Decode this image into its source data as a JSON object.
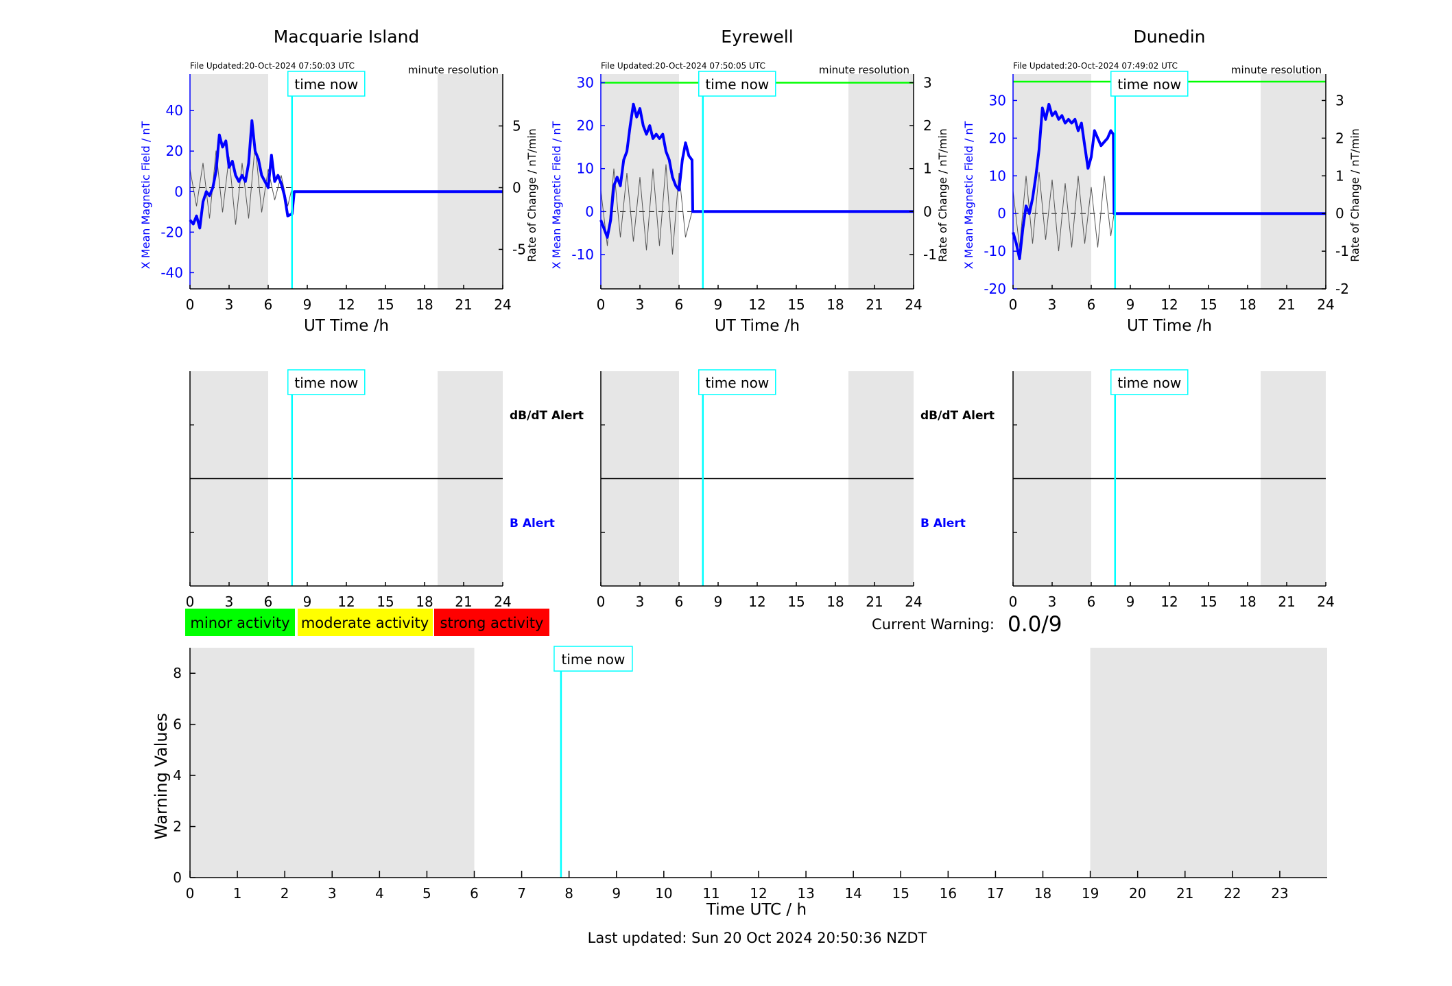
{
  "stations": [
    {
      "name": "Macquarie Island",
      "file_updated": "File Updated:20-Oct-2024 07:50:03 UTC",
      "resolution": "minute resolution",
      "ylim_left": [
        -48,
        58
      ],
      "yticks_left": [
        -40,
        -20,
        0,
        20,
        40
      ],
      "ylim_right": [
        -8.2,
        9.2
      ],
      "yticks_right": [
        -5,
        0,
        5
      ],
      "threshold": null,
      "time_now": 7.83
    },
    {
      "name": "Eyrewell",
      "file_updated": "File Updated:20-Oct-2024 07:50:05 UTC",
      "resolution": "minute resolution",
      "ylim_left": [
        -18,
        32
      ],
      "yticks_left": [
        -10,
        0,
        10,
        20,
        30
      ],
      "ylim_right": [
        -1.8,
        3.2
      ],
      "yticks_right": [
        -1,
        0,
        1,
        2,
        3
      ],
      "threshold": 30,
      "time_now": 7.83
    },
    {
      "name": "Dunedin",
      "file_updated": "File Updated:20-Oct-2024 07:49:02 UTC",
      "resolution": "minute resolution",
      "ylim_left": [
        -20,
        37
      ],
      "yticks_left": [
        -20,
        -10,
        0,
        10,
        20,
        30
      ],
      "ylim_right": [
        -2,
        3.7
      ],
      "yticks_right": [
        -2,
        -1,
        0,
        1,
        2,
        3
      ],
      "threshold": 35,
      "time_now": 7.83
    }
  ],
  "labels": {
    "ylabel_left": "X Mean Magnetic Field / nT",
    "ylabel_right": "Rate of Change / nT/min",
    "xlabel_station": "UT Time /h",
    "time_now": "time now",
    "dbdt_alert": "dB/dT Alert",
    "b_alert": "B Alert",
    "current_warning_label": "Current Warning:",
    "current_warning_value": "0.0/9",
    "warning_ylabel": "Warning Values",
    "warning_xlabel": "Time UTC / h",
    "last_updated": "Last updated: Sun 20 Oct 2024 20:50:36 NZDT"
  },
  "legend": [
    {
      "label": "minor activity",
      "color": "#00ff00"
    },
    {
      "label": "moderate activity",
      "color": "#ffff00"
    },
    {
      "label": "strong activity",
      "color": "#ff0000"
    }
  ],
  "colors": {
    "field_line": "#0000ff",
    "rate_line": "#555555",
    "time_now_line": "#00ffff",
    "threshold_line": "#00ff00",
    "night_shade": "#e6e6e6",
    "axis_blue": "#0000ff"
  },
  "chart_data": [
    {
      "type": "line",
      "title": "Macquarie Island",
      "xlabel": "UT Time /h",
      "ylabel": "X Mean Magnetic Field / nT",
      "ylabel_right": "Rate of Change / nT/min",
      "xlim": [
        0,
        24
      ],
      "xticks": [
        0,
        3,
        6,
        9,
        12,
        15,
        18,
        21,
        24
      ],
      "shaded_x": [
        [
          0,
          6
        ],
        [
          19,
          24
        ]
      ],
      "series": [
        {
          "name": "X Mean Magnetic Field / nT",
          "x": [
            0,
            0.25,
            0.5,
            0.75,
            1.0,
            1.25,
            1.5,
            1.75,
            2.0,
            2.25,
            2.5,
            2.75,
            3.0,
            3.25,
            3.5,
            3.75,
            4.0,
            4.25,
            4.5,
            4.75,
            5.0,
            5.25,
            5.5,
            5.75,
            6.0,
            6.25,
            6.5,
            6.75,
            7.0,
            7.25,
            7.5,
            7.83,
            8.0,
            24
          ],
          "y": [
            -14,
            -16,
            -12,
            -18,
            -5,
            0,
            -2,
            2,
            10,
            28,
            22,
            25,
            12,
            15,
            8,
            5,
            8,
            5,
            14,
            35,
            20,
            16,
            8,
            5,
            2,
            18,
            5,
            8,
            4,
            -2,
            -12,
            -11,
            0,
            0
          ]
        },
        {
          "name": "Rate of Change / nT/min",
          "x": [
            0,
            0.5,
            1.0,
            1.5,
            2.0,
            2.5,
            3.0,
            3.5,
            4.0,
            4.5,
            5.0,
            5.5,
            6.0,
            6.5,
            7.0,
            7.5,
            7.83
          ],
          "y": [
            1.5,
            -1.5,
            2.0,
            -2.5,
            3.0,
            -2.0,
            2.5,
            -3.0,
            2.0,
            -2.5,
            3.5,
            -2.0,
            1.5,
            -1.0,
            1.0,
            -1.5,
            0
          ]
        }
      ]
    },
    {
      "type": "line",
      "title": "Eyrewell",
      "xlabel": "UT Time /h",
      "ylabel": "X Mean Magnetic Field / nT",
      "ylabel_right": "Rate of Change / nT/min",
      "xlim": [
        0,
        24
      ],
      "xticks": [
        0,
        3,
        6,
        9,
        12,
        15,
        18,
        21,
        24
      ],
      "shaded_x": [
        [
          0,
          6
        ],
        [
          19,
          24
        ]
      ],
      "series": [
        {
          "name": "X Mean Magnetic Field / nT",
          "x": [
            0,
            0.25,
            0.5,
            0.75,
            1.0,
            1.25,
            1.5,
            1.75,
            2.0,
            2.25,
            2.5,
            2.75,
            3.0,
            3.25,
            3.5,
            3.75,
            4.0,
            4.25,
            4.5,
            4.75,
            5.0,
            5.25,
            5.5,
            5.75,
            6.0,
            6.25,
            6.5,
            6.75,
            7.0,
            7.05,
            24
          ],
          "y": [
            -2,
            -4,
            -6,
            -2,
            6,
            8,
            6,
            12,
            14,
            20,
            25,
            22,
            24,
            20,
            18,
            20,
            17,
            18,
            17,
            18,
            14,
            12,
            8,
            6,
            5,
            12,
            16,
            13,
            12,
            0,
            0
          ]
        },
        {
          "name": "Rate of Change / nT/min",
          "x": [
            0,
            0.5,
            1.0,
            1.5,
            2.0,
            2.5,
            3.0,
            3.5,
            4.0,
            4.5,
            5.0,
            5.5,
            6.0,
            6.5,
            7.0
          ],
          "y": [
            0.5,
            -0.8,
            1.0,
            -0.6,
            0.9,
            -0.7,
            0.8,
            -0.9,
            1.0,
            -0.8,
            1.1,
            -1.0,
            0.9,
            -0.6,
            0
          ]
        }
      ]
    },
    {
      "type": "line",
      "title": "Dunedin",
      "xlabel": "UT Time /h",
      "ylabel": "X Mean Magnetic Field / nT",
      "ylabel_right": "Rate of Change / nT/min",
      "xlim": [
        0,
        24
      ],
      "xticks": [
        0,
        3,
        6,
        9,
        12,
        15,
        18,
        21,
        24
      ],
      "shaded_x": [
        [
          0,
          6
        ],
        [
          19,
          24
        ]
      ],
      "series": [
        {
          "name": "X Mean Magnetic Field / nT",
          "x": [
            0,
            0.25,
            0.5,
            0.75,
            1.0,
            1.25,
            1.5,
            1.75,
            2.0,
            2.25,
            2.5,
            2.75,
            3.0,
            3.25,
            3.5,
            3.75,
            4.0,
            4.25,
            4.5,
            4.75,
            5.0,
            5.25,
            5.5,
            5.75,
            6.0,
            6.25,
            6.5,
            6.75,
            7.0,
            7.25,
            7.5,
            7.7,
            7.75,
            24
          ],
          "y": [
            -5,
            -8,
            -12,
            -4,
            2,
            0,
            4,
            10,
            17,
            28,
            25,
            29,
            26,
            27,
            25,
            26,
            24,
            25,
            24,
            25,
            22,
            24,
            18,
            12,
            15,
            22,
            20,
            18,
            19,
            20,
            22,
            21,
            0,
            0
          ]
        },
        {
          "name": "Rate of Change / nT/min",
          "x": [
            0,
            0.5,
            1.0,
            1.5,
            2.0,
            2.5,
            3.0,
            3.5,
            4.0,
            4.5,
            5.0,
            5.5,
            6.0,
            6.5,
            7.0,
            7.5,
            7.75
          ],
          "y": [
            0.6,
            -0.9,
            1.0,
            -0.8,
            1.1,
            -0.7,
            0.9,
            -1.0,
            0.8,
            -0.9,
            1.0,
            -0.8,
            0.7,
            -0.9,
            1.0,
            -0.6,
            0
          ]
        }
      ]
    },
    {
      "type": "line",
      "title": "",
      "xlabel": "Time UTC / h",
      "ylabel": "Warning Values",
      "xlim": [
        0,
        24
      ],
      "ylim": [
        0,
        9
      ],
      "xticks": [
        0,
        1,
        2,
        3,
        4,
        5,
        6,
        7,
        8,
        9,
        10,
        11,
        12,
        13,
        14,
        15,
        16,
        17,
        18,
        19,
        20,
        21,
        22,
        23
      ],
      "yticks": [
        0,
        2,
        4,
        6,
        8
      ],
      "shaded_x": [
        [
          0,
          6
        ],
        [
          19,
          24
        ]
      ],
      "time_now": 7.83,
      "series": [
        {
          "x": [],
          "y": []
        }
      ]
    }
  ]
}
